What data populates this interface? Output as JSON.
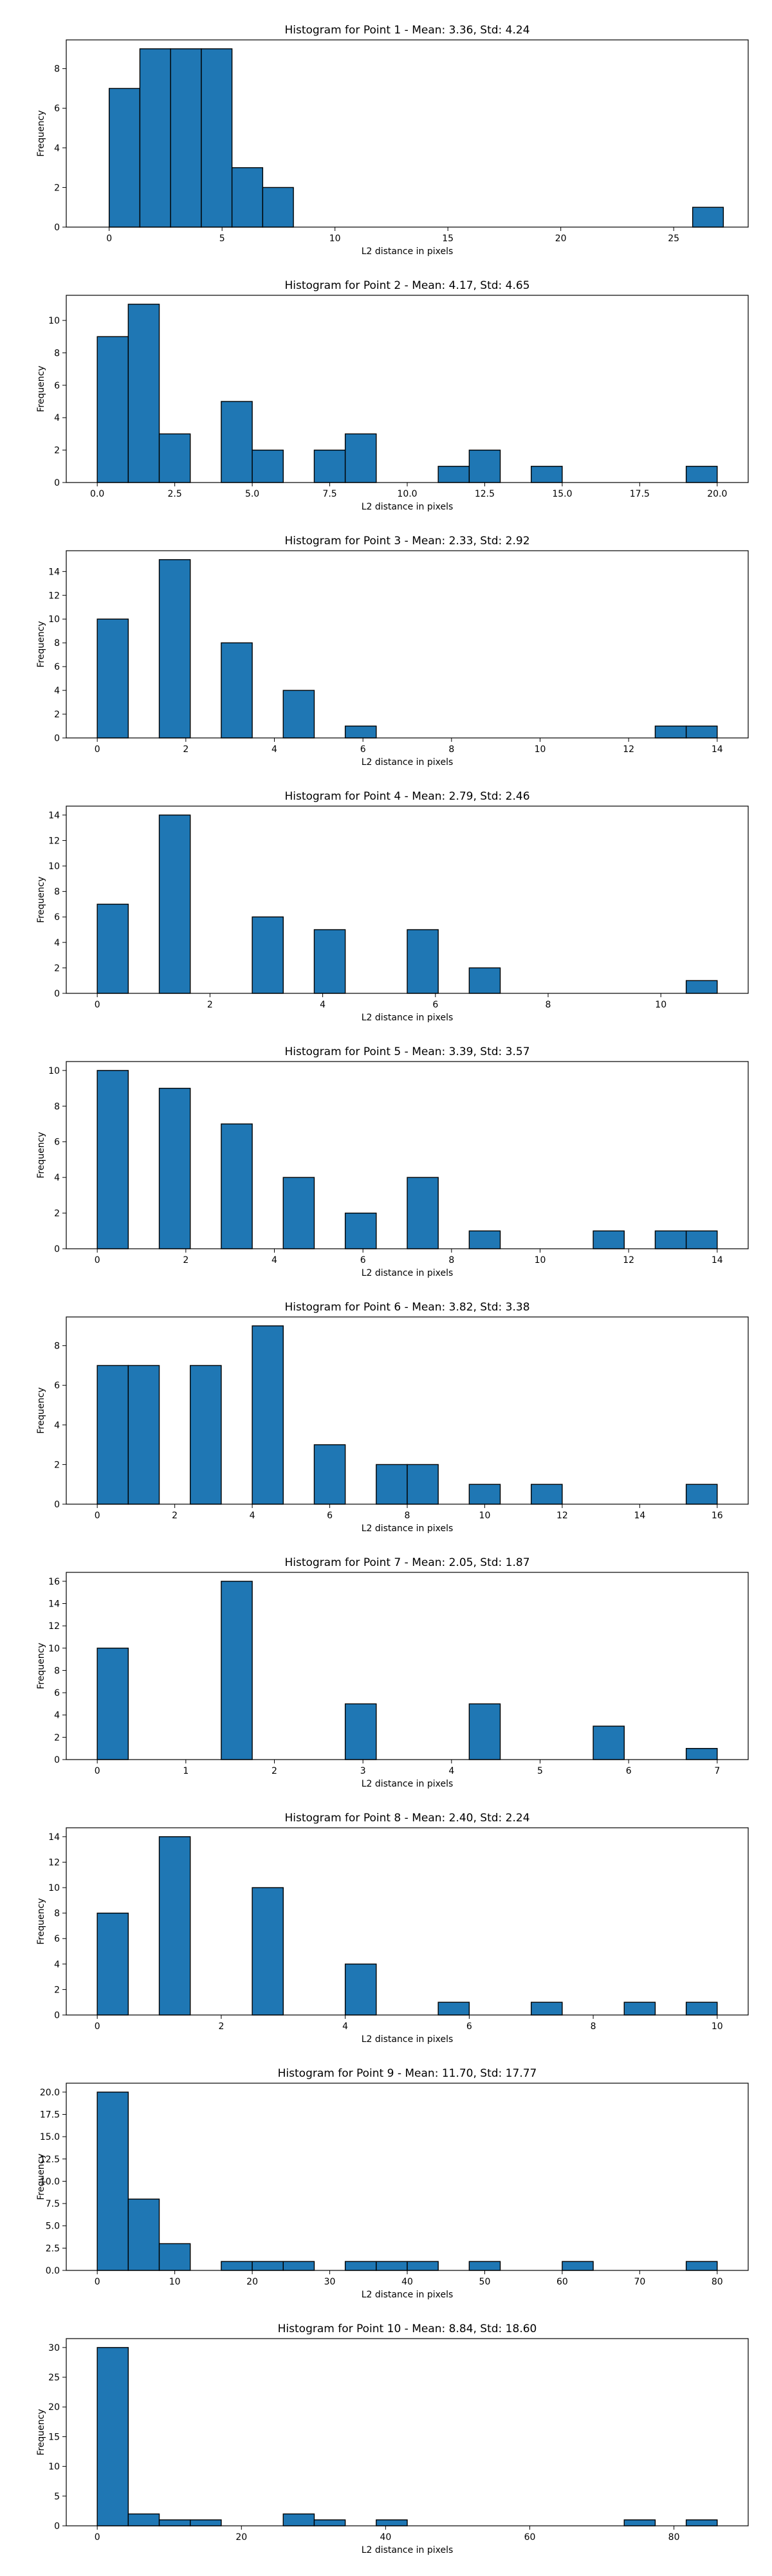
{
  "chart_data": [
    {
      "type": "bar",
      "title": "Histogram for Point 1 - Mean: 3.36, Std: 4.24",
      "xlabel": "L2 distance in pixels",
      "ylabel": "Frequency",
      "xlim": [
        -1.9,
        28.3
      ],
      "ylim": [
        0,
        9.45
      ],
      "xticks": [
        0,
        5,
        10,
        15,
        20,
        25
      ],
      "xtick_labels": [
        "0",
        "5",
        "10",
        "15",
        "20",
        "25"
      ],
      "yticks": [
        0,
        2,
        4,
        6,
        8
      ],
      "ytick_labels": [
        "0",
        "2",
        "4",
        "6",
        "8"
      ],
      "bin_width": 1.36,
      "bins": [
        [
          0,
          7
        ],
        [
          1.36,
          9
        ],
        [
          2.72,
          9
        ],
        [
          4.08,
          9
        ],
        [
          5.44,
          3
        ],
        [
          6.8,
          2
        ],
        [
          25.84,
          1
        ]
      ]
    },
    {
      "type": "bar",
      "title": "Histogram for Point 2 - Mean: 4.17, Std: 4.65",
      "xlabel": "L2 distance in pixels",
      "ylabel": "Frequency",
      "xlim": [
        -1.0,
        21.0
      ],
      "ylim": [
        0,
        11.55
      ],
      "xticks": [
        0,
        2.5,
        5,
        7.5,
        10,
        12.5,
        15,
        17.5,
        20
      ],
      "xtick_labels": [
        "0.0",
        "2.5",
        "5.0",
        "7.5",
        "10.0",
        "12.5",
        "15.0",
        "17.5",
        "20.0"
      ],
      "yticks": [
        0,
        2,
        4,
        6,
        8,
        10
      ],
      "ytick_labels": [
        "0",
        "2",
        "4",
        "6",
        "8",
        "10"
      ],
      "bin_width": 1.0,
      "bins": [
        [
          0,
          9
        ],
        [
          1,
          11
        ],
        [
          2,
          3
        ],
        [
          4,
          5
        ],
        [
          5,
          2
        ],
        [
          7,
          2
        ],
        [
          8,
          3
        ],
        [
          11,
          1
        ],
        [
          12,
          2
        ],
        [
          14,
          1
        ],
        [
          19,
          1
        ]
      ]
    },
    {
      "type": "bar",
      "title": "Histogram for Point 3 - Mean: 2.33, Std: 2.92",
      "xlabel": "L2 distance in pixels",
      "ylabel": "Frequency",
      "xlim": [
        -0.7,
        14.7
      ],
      "ylim": [
        0,
        15.75
      ],
      "xticks": [
        0,
        2,
        4,
        6,
        8,
        10,
        12,
        14
      ],
      "xtick_labels": [
        "0",
        "2",
        "4",
        "6",
        "8",
        "10",
        "12",
        "14"
      ],
      "yticks": [
        0,
        2,
        4,
        6,
        8,
        10,
        12,
        14
      ],
      "ytick_labels": [
        "0",
        "2",
        "4",
        "6",
        "8",
        "10",
        "12",
        "14"
      ],
      "bin_width": 0.7,
      "bins": [
        [
          0,
          10
        ],
        [
          1.4,
          15
        ],
        [
          2.8,
          8
        ],
        [
          4.2,
          4
        ],
        [
          5.6,
          1
        ],
        [
          12.6,
          1
        ],
        [
          13.3,
          1
        ]
      ]
    },
    {
      "type": "bar",
      "title": "Histogram for Point 4 - Mean: 2.79, Std: 2.46",
      "xlabel": "L2 distance in pixels",
      "ylabel": "Frequency",
      "xlim": [
        -0.55,
        11.55
      ],
      "ylim": [
        0,
        14.7
      ],
      "xticks": [
        0,
        2,
        4,
        6,
        8,
        10
      ],
      "xtick_labels": [
        "0",
        "2",
        "4",
        "6",
        "8",
        "10"
      ],
      "yticks": [
        0,
        2,
        4,
        6,
        8,
        10,
        12,
        14
      ],
      "ytick_labels": [
        "0",
        "2",
        "4",
        "6",
        "8",
        "10",
        "12",
        "14"
      ],
      "bin_width": 0.55,
      "bins": [
        [
          0,
          7
        ],
        [
          1.1,
          14
        ],
        [
          2.75,
          6
        ],
        [
          3.85,
          5
        ],
        [
          5.5,
          5
        ],
        [
          6.6,
          2
        ],
        [
          10.45,
          1
        ]
      ]
    },
    {
      "type": "bar",
      "title": "Histogram for Point 5 - Mean: 3.39, Std: 3.57",
      "xlabel": "L2 distance in pixels",
      "ylabel": "Frequency",
      "xlim": [
        -0.7,
        14.7
      ],
      "ylim": [
        0,
        10.5
      ],
      "xticks": [
        0,
        2,
        4,
        6,
        8,
        10,
        12,
        14
      ],
      "xtick_labels": [
        "0",
        "2",
        "4",
        "6",
        "8",
        "10",
        "12",
        "14"
      ],
      "yticks": [
        0,
        2,
        4,
        6,
        8,
        10
      ],
      "ytick_labels": [
        "0",
        "2",
        "4",
        "6",
        "8",
        "10"
      ],
      "bin_width": 0.7,
      "bins": [
        [
          0,
          10
        ],
        [
          1.4,
          9
        ],
        [
          2.8,
          7
        ],
        [
          4.2,
          4
        ],
        [
          5.6,
          2
        ],
        [
          7.0,
          4
        ],
        [
          8.4,
          1
        ],
        [
          11.2,
          1
        ],
        [
          12.6,
          1
        ],
        [
          13.3,
          1
        ]
      ]
    },
    {
      "type": "bar",
      "title": "Histogram for Point 6 - Mean: 3.82, Std: 3.38",
      "xlabel": "L2 distance in pixels",
      "ylabel": "Frequency",
      "xlim": [
        -0.8,
        16.8
      ],
      "ylim": [
        0,
        9.45
      ],
      "xticks": [
        0,
        2,
        4,
        6,
        8,
        10,
        12,
        14,
        16
      ],
      "xtick_labels": [
        "0",
        "2",
        "4",
        "6",
        "8",
        "10",
        "12",
        "14",
        "16"
      ],
      "yticks": [
        0,
        2,
        4,
        6,
        8
      ],
      "ytick_labels": [
        "0",
        "2",
        "4",
        "6",
        "8"
      ],
      "bin_width": 0.8,
      "bins": [
        [
          0,
          7
        ],
        [
          0.8,
          7
        ],
        [
          2.4,
          7
        ],
        [
          4.0,
          9
        ],
        [
          5.6,
          3
        ],
        [
          7.2,
          2
        ],
        [
          8.0,
          2
        ],
        [
          9.6,
          1
        ],
        [
          11.2,
          1
        ],
        [
          15.2,
          1
        ]
      ]
    },
    {
      "type": "bar",
      "title": "Histogram for Point 7 - Mean: 2.05, Std: 1.87",
      "xlabel": "L2 distance in pixels",
      "ylabel": "Frequency",
      "xlim": [
        -0.35,
        7.35
      ],
      "ylim": [
        0,
        16.8
      ],
      "xticks": [
        0,
        1,
        2,
        3,
        4,
        5,
        6,
        7
      ],
      "xtick_labels": [
        "0",
        "1",
        "2",
        "3",
        "4",
        "5",
        "6",
        "7"
      ],
      "yticks": [
        0,
        2,
        4,
        6,
        8,
        10,
        12,
        14,
        16
      ],
      "ytick_labels": [
        "0",
        "2",
        "4",
        "6",
        "8",
        "10",
        "12",
        "14",
        "16"
      ],
      "bin_width": 0.35,
      "bins": [
        [
          0,
          10
        ],
        [
          1.4,
          16
        ],
        [
          2.8,
          5
        ],
        [
          4.2,
          5
        ],
        [
          5.6,
          3
        ],
        [
          6.65,
          1
        ]
      ]
    },
    {
      "type": "bar",
      "title": "Histogram for Point 8 - Mean: 2.40, Std: 2.24",
      "xlabel": "L2 distance in pixels",
      "ylabel": "Frequency",
      "xlim": [
        -0.5,
        10.5
      ],
      "ylim": [
        0,
        14.7
      ],
      "xticks": [
        0,
        2,
        4,
        6,
        8,
        10
      ],
      "xtick_labels": [
        "0",
        "2",
        "4",
        "6",
        "8",
        "10"
      ],
      "yticks": [
        0,
        2,
        4,
        6,
        8,
        10,
        12,
        14
      ],
      "ytick_labels": [
        "0",
        "2",
        "4",
        "6",
        "8",
        "10",
        "12",
        "14"
      ],
      "bin_width": 0.5,
      "bins": [
        [
          0,
          8
        ],
        [
          1.0,
          14
        ],
        [
          2.5,
          10
        ],
        [
          4.0,
          4
        ],
        [
          5.5,
          1
        ],
        [
          7.0,
          1
        ],
        [
          8.5,
          1
        ],
        [
          9.5,
          1
        ]
      ]
    },
    {
      "type": "bar",
      "title": "Histogram for Point 9 - Mean: 11.70, Std: 17.77",
      "xlabel": "L2 distance in pixels",
      "ylabel": "Frequency",
      "xlim": [
        -4.0,
        84.0
      ],
      "ylim": [
        0,
        21.0
      ],
      "xticks": [
        0,
        10,
        20,
        30,
        40,
        50,
        60,
        70,
        80
      ],
      "xtick_labels": [
        "0",
        "10",
        "20",
        "30",
        "40",
        "50",
        "60",
        "70",
        "80"
      ],
      "yticks": [
        0,
        2.5,
        5,
        7.5,
        10,
        12.5,
        15,
        17.5,
        20
      ],
      "ytick_labels": [
        "0.0",
        "2.5",
        "5.0",
        "7.5",
        "10.0",
        "12.5",
        "15.0",
        "17.5",
        "20.0"
      ],
      "bin_width": 4.0,
      "bins": [
        [
          0,
          20
        ],
        [
          4,
          8
        ],
        [
          8,
          3
        ],
        [
          16,
          1
        ],
        [
          20,
          1
        ],
        [
          24,
          1
        ],
        [
          32,
          1
        ],
        [
          36,
          1
        ],
        [
          40,
          1
        ],
        [
          48,
          1
        ],
        [
          60,
          1
        ],
        [
          76,
          1
        ]
      ]
    },
    {
      "type": "bar",
      "title": "Histogram for Point 10 - Mean: 8.84, Std: 18.60",
      "xlabel": "L2 distance in pixels",
      "ylabel": "Frequency",
      "xlim": [
        -4.3,
        90.3
      ],
      "ylim": [
        0,
        31.5
      ],
      "xticks": [
        0,
        20,
        40,
        60,
        80
      ],
      "xtick_labels": [
        "0",
        "20",
        "40",
        "60",
        "80"
      ],
      "yticks": [
        0,
        5,
        10,
        15,
        20,
        25,
        30
      ],
      "ytick_labels": [
        "0",
        "5",
        "10",
        "15",
        "20",
        "25",
        "30"
      ],
      "bin_width": 4.3,
      "bins": [
        [
          0,
          30
        ],
        [
          4.3,
          2
        ],
        [
          8.6,
          1
        ],
        [
          12.9,
          1
        ],
        [
          25.8,
          2
        ],
        [
          30.1,
          1
        ],
        [
          38.7,
          1
        ],
        [
          73.1,
          1
        ],
        [
          81.7,
          1
        ]
      ]
    }
  ],
  "colors": {
    "bar_fill": "#1f77b4",
    "bar_edge": "#000000",
    "axes": "#000000"
  }
}
